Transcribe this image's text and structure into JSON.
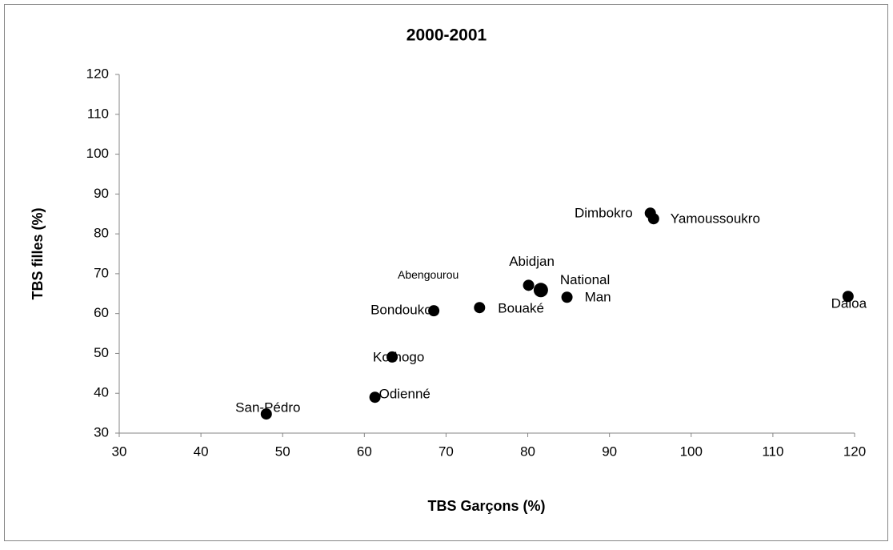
{
  "chart_data": {
    "type": "scatter",
    "title": "2000-2001",
    "xlabel": "TBS Garçons (%)",
    "ylabel": "TBS filles (%)",
    "points": [
      {
        "label": "San-Pédro",
        "x": 48.0,
        "y": 34.8
      },
      {
        "label": "Odienné",
        "x": 61.3,
        "y": 39.0
      },
      {
        "label": "Korhogo",
        "x": 63.4,
        "y": 49.1
      },
      {
        "label": "Bondoukou",
        "x": 68.5,
        "y": 60.7
      },
      {
        "label": "Abengourou",
        "x": 68.6,
        "y": 60.9
      },
      {
        "label": "Bouaké",
        "x": 74.1,
        "y": 61.5
      },
      {
        "label": "Abidjan",
        "x": 80.1,
        "y": 67.1
      },
      {
        "label": "National",
        "x": 81.6,
        "y": 65.9
      },
      {
        "label": "Man",
        "x": 84.8,
        "y": 64.1
      },
      {
        "label": "Dimbokro",
        "x": 95.0,
        "y": 85.2
      },
      {
        "label": "Yamoussoukro",
        "x": 95.4,
        "y": 83.8
      },
      {
        "label": "Daloa",
        "x": 119.2,
        "y": 64.3
      }
    ],
    "color": "#000000",
    "xlim": [
      30,
      120
    ],
    "xticks": [
      30,
      40,
      50,
      60,
      70,
      80,
      90,
      100,
      110,
      120
    ],
    "ylim": [
      30,
      120
    ],
    "yticks": [
      30,
      40,
      50,
      60,
      70,
      80,
      90,
      100,
      110,
      120
    ],
    "grid": false
  }
}
